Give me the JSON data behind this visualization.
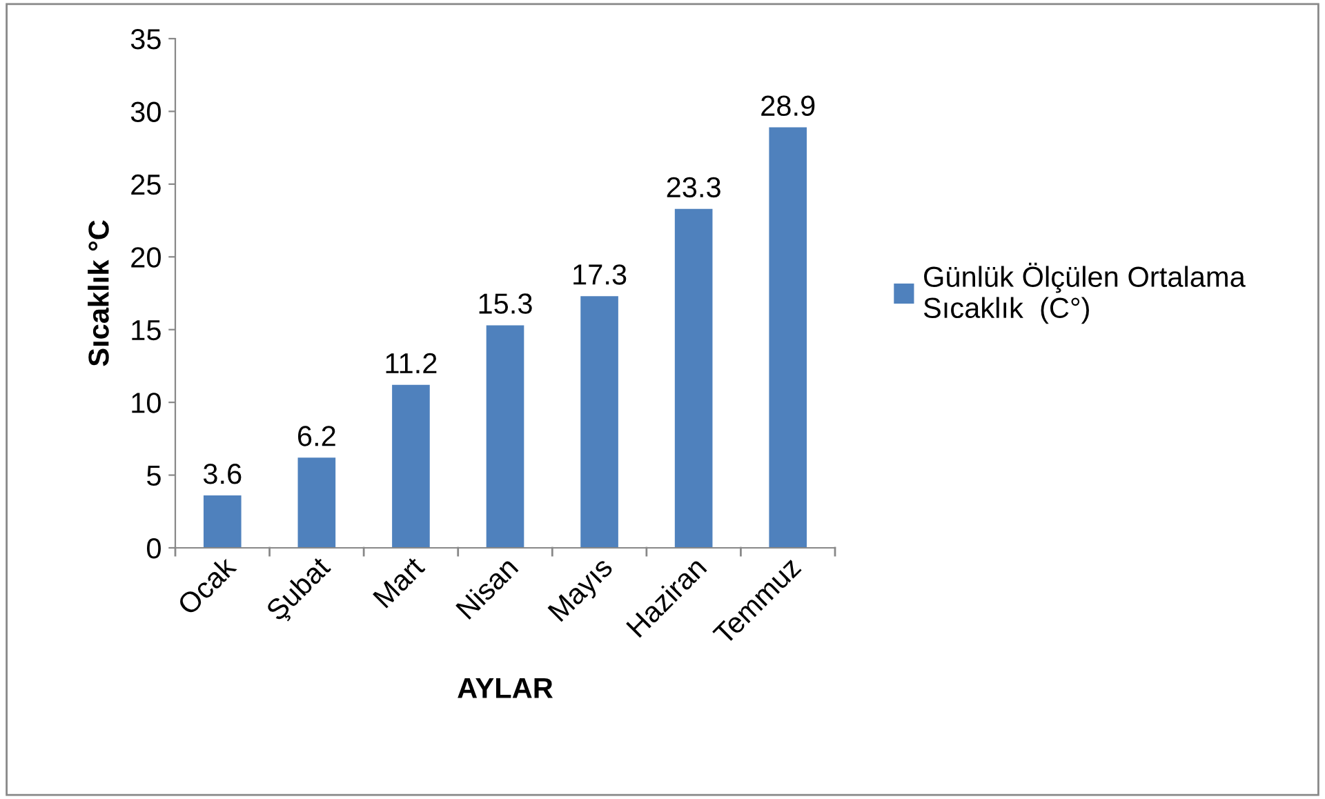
{
  "chart_data": {
    "type": "bar",
    "xlabel": "AYLAR",
    "ylabel": "Sıcaklık °C",
    "categories": [
      "Ocak",
      "Şubat",
      "Mart",
      "Nisan",
      "Mayıs",
      "Haziran",
      "Temmuz"
    ],
    "series": [
      {
        "name": "Günlük Ölçülen Ortalama Sıcaklık  (C°)",
        "color": "#4f81bd",
        "values": [
          3.6,
          6.2,
          11.2,
          15.3,
          17.3,
          23.3,
          28.9
        ]
      }
    ],
    "ylim": [
      0,
      35
    ],
    "yticks": [
      0,
      5,
      10,
      15,
      20,
      25,
      30,
      35
    ],
    "grid": false,
    "legend": "right",
    "data_labels": true
  }
}
